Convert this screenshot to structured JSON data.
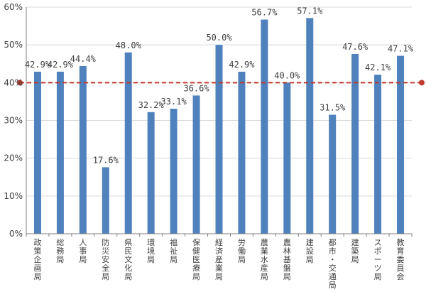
{
  "chart_data": {
    "type": "bar",
    "categories": [
      "政策企画局",
      "総務局",
      "人事局",
      "防災安全局",
      "県民文化局",
      "環境局",
      "福祉局",
      "保健医療局",
      "経済産業局",
      "労働局",
      "農業水産局",
      "農林基盤局",
      "建設局",
      "都市・交通局",
      "建築局",
      "スポーツ局",
      "教育委員会"
    ],
    "values": [
      42.9,
      42.9,
      44.4,
      17.6,
      48.0,
      32.2,
      33.1,
      36.6,
      50.0,
      42.9,
      56.7,
      40.0,
      57.1,
      31.5,
      47.6,
      42.1,
      47.1
    ],
    "value_labels": [
      "42.9%",
      "42.9%",
      "44.4%",
      "17.6%",
      "48.0%",
      "32.2%",
      "33.1%",
      "36.6%",
      "50.0%",
      "42.9%",
      "56.7%",
      "40.0%",
      "57.1%",
      "31.5%",
      "47.6%",
      "42.1%",
      "47.1%"
    ],
    "y_ticks": [
      0,
      10,
      20,
      30,
      40,
      50,
      60
    ],
    "y_tick_labels": [
      "0%",
      "10%",
      "20%",
      "30%",
      "40%",
      "50%",
      "60%"
    ],
    "ylim": [
      0,
      60
    ],
    "reference_line": {
      "value": 40
    },
    "colors": {
      "bar": "#4f81bd",
      "reference_line": "#c0392b",
      "grid": "#d9d9d9",
      "axis": "#7f7f7f",
      "text": "#404040"
    },
    "grid": true
  }
}
